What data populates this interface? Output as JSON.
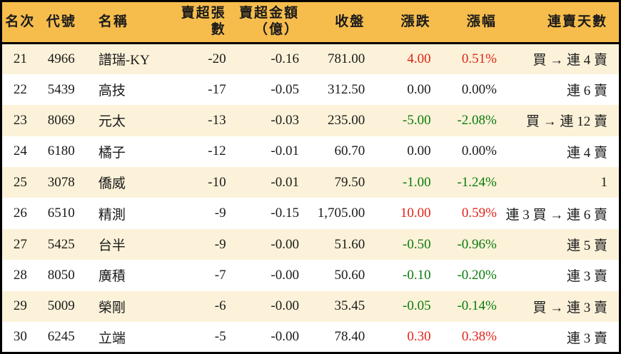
{
  "colors": {
    "header_bg": "#f6bd4d",
    "row_alt_bg": "#fbf2d9",
    "row_bg": "#ffffff",
    "up_color": "#e02418",
    "down_color": "#0b7b0b",
    "text_color": "#1a1a1a",
    "border_color": "#000000"
  },
  "table": {
    "columns": [
      {
        "key": "rank",
        "label": "名次"
      },
      {
        "key": "code",
        "label": "代號"
      },
      {
        "key": "name",
        "label": "名稱"
      },
      {
        "key": "sell_volume",
        "label": "賣超張數"
      },
      {
        "key": "sell_amount",
        "label": "賣超金額\n（億）"
      },
      {
        "key": "close",
        "label": "收盤"
      },
      {
        "key": "change",
        "label": "漲跌"
      },
      {
        "key": "change_pct",
        "label": "漲幅"
      },
      {
        "key": "streak",
        "label": "連賣天數"
      }
    ],
    "rows": [
      {
        "rank": "21",
        "code": "4966",
        "name": "譜瑞-KY",
        "sell_volume": "-20",
        "sell_amount": "-0.16",
        "close": "781.00",
        "change": "4.00",
        "change_pct": "0.51%",
        "streak": "買 → 連 4 賣"
      },
      {
        "rank": "22",
        "code": "5439",
        "name": "高技",
        "sell_volume": "-17",
        "sell_amount": "-0.05",
        "close": "312.50",
        "change": "0.00",
        "change_pct": "0.00%",
        "streak": "連 6 賣"
      },
      {
        "rank": "23",
        "code": "8069",
        "name": "元太",
        "sell_volume": "-13",
        "sell_amount": "-0.03",
        "close": "235.00",
        "change": "-5.00",
        "change_pct": "-2.08%",
        "streak": "買 → 連 12 賣"
      },
      {
        "rank": "24",
        "code": "6180",
        "name": "橘子",
        "sell_volume": "-12",
        "sell_amount": "-0.01",
        "close": "60.70",
        "change": "0.00",
        "change_pct": "0.00%",
        "streak": "連 4 賣"
      },
      {
        "rank": "25",
        "code": "3078",
        "name": "僑威",
        "sell_volume": "-10",
        "sell_amount": "-0.01",
        "close": "79.50",
        "change": "-1.00",
        "change_pct": "-1.24%",
        "streak": "1"
      },
      {
        "rank": "26",
        "code": "6510",
        "name": "精測",
        "sell_volume": "-9",
        "sell_amount": "-0.15",
        "close": "1,705.00",
        "change": "10.00",
        "change_pct": "0.59%",
        "streak": "連 3 買 → 連 6 賣"
      },
      {
        "rank": "27",
        "code": "5425",
        "name": "台半",
        "sell_volume": "-9",
        "sell_amount": "-0.00",
        "close": "51.60",
        "change": "-0.50",
        "change_pct": "-0.96%",
        "streak": "連 5 賣"
      },
      {
        "rank": "28",
        "code": "8050",
        "name": "廣積",
        "sell_volume": "-7",
        "sell_amount": "-0.00",
        "close": "50.60",
        "change": "-0.10",
        "change_pct": "-0.20%",
        "streak": "連 3 賣"
      },
      {
        "rank": "29",
        "code": "5009",
        "name": "榮剛",
        "sell_volume": "-6",
        "sell_amount": "-0.00",
        "close": "35.45",
        "change": "-0.05",
        "change_pct": "-0.14%",
        "streak": "買 → 連 3 賣"
      },
      {
        "rank": "30",
        "code": "6245",
        "name": "立端",
        "sell_volume": "-5",
        "sell_amount": "-0.00",
        "close": "78.40",
        "change": "0.30",
        "change_pct": "0.38%",
        "streak": "連 3 賣"
      }
    ]
  },
  "chart_data": {
    "type": "table",
    "columns": [
      "名次",
      "代號",
      "名稱",
      "賣超張數",
      "賣超金額（億）",
      "收盤",
      "漲跌",
      "漲幅",
      "連賣天數"
    ],
    "rows": [
      [
        "21",
        "4966",
        "譜瑞-KY",
        "-20",
        "-0.16",
        "781.00",
        "4.00",
        "0.51%",
        "買 → 連 4 賣"
      ],
      [
        "22",
        "5439",
        "高技",
        "-17",
        "-0.05",
        "312.50",
        "0.00",
        "0.00%",
        "連 6 賣"
      ],
      [
        "23",
        "8069",
        "元太",
        "-13",
        "-0.03",
        "235.00",
        "-5.00",
        "-2.08%",
        "買 → 連 12 賣"
      ],
      [
        "24",
        "6180",
        "橘子",
        "-12",
        "-0.01",
        "60.70",
        "0.00",
        "0.00%",
        "連 4 賣"
      ],
      [
        "25",
        "3078",
        "僑威",
        "-10",
        "-0.01",
        "79.50",
        "-1.00",
        "-1.24%",
        "1"
      ],
      [
        "26",
        "6510",
        "精測",
        "-9",
        "-0.15",
        "1,705.00",
        "10.00",
        "0.59%",
        "連 3 買 → 連 6 賣"
      ],
      [
        "27",
        "5425",
        "台半",
        "-9",
        "-0.00",
        "51.60",
        "-0.50",
        "-0.96%",
        "連 5 賣"
      ],
      [
        "28",
        "8050",
        "廣積",
        "-7",
        "-0.00",
        "50.60",
        "-0.10",
        "-0.20%",
        "連 3 賣"
      ],
      [
        "29",
        "5009",
        "榮剛",
        "-6",
        "-0.00",
        "35.45",
        "-0.05",
        "-0.14%",
        "買 → 連 3 賣"
      ],
      [
        "30",
        "6245",
        "立端",
        "-5",
        "-0.00",
        "78.40",
        "0.30",
        "0.38%",
        "連 3 賣"
      ]
    ]
  }
}
